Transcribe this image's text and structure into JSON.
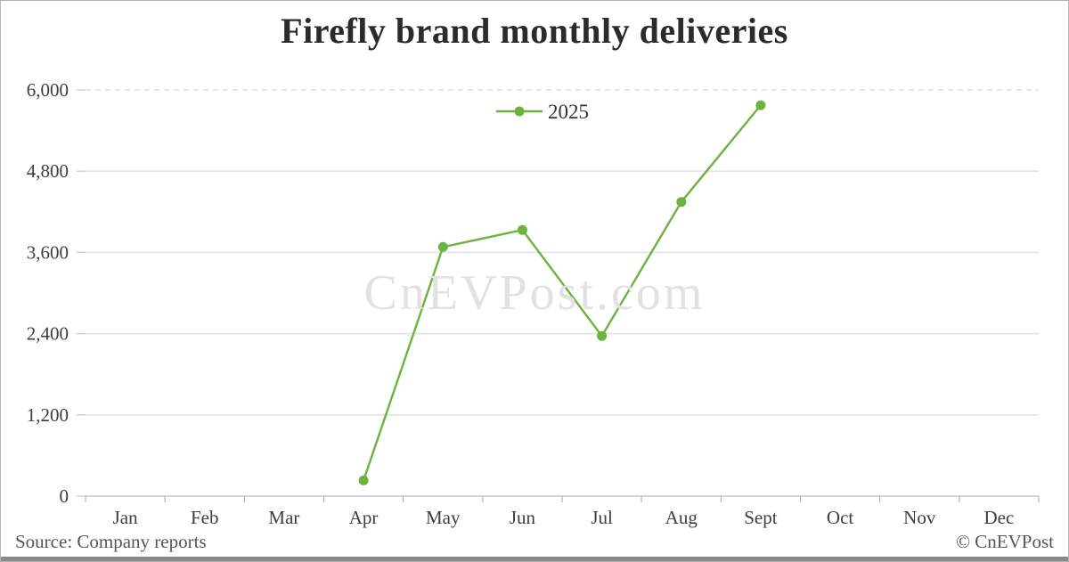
{
  "page": {
    "title": "Firefly brand monthly deliveries",
    "watermark": "CnEVPost.com",
    "source": "Source: Company reports",
    "copyright": "© CnEVPost"
  },
  "chart_data": {
    "type": "line",
    "title": "Firefly brand monthly deliveries",
    "categories": [
      "Jan",
      "Feb",
      "Mar",
      "Apr",
      "May",
      "Jun",
      "Jul",
      "Aug",
      "Sept",
      "Oct",
      "Nov",
      "Dec"
    ],
    "series": [
      {
        "name": "2025",
        "color": "#6cb23e",
        "values": [
          null,
          null,
          null,
          231,
          3680,
          3932,
          2366,
          4346,
          5775,
          null,
          null,
          null
        ]
      }
    ],
    "ylim": [
      0,
      6000
    ],
    "yticks": [
      0,
      1200,
      2400,
      3600,
      4800,
      6000
    ],
    "ytick_labels": [
      "0",
      "1,200",
      "2,400",
      "3,600",
      "4,800",
      "6,000"
    ],
    "grid": "horizontal",
    "legend_position": "top-center",
    "xlabel": "",
    "ylabel": ""
  },
  "colors": {
    "series_green": "#6cb23e",
    "gridline": "#e3e3e3",
    "axis": "#bdbdbd",
    "text": "#3d3d3d",
    "watermark": "#e2e2e2",
    "footer_bar": "#8a8a8a"
  }
}
